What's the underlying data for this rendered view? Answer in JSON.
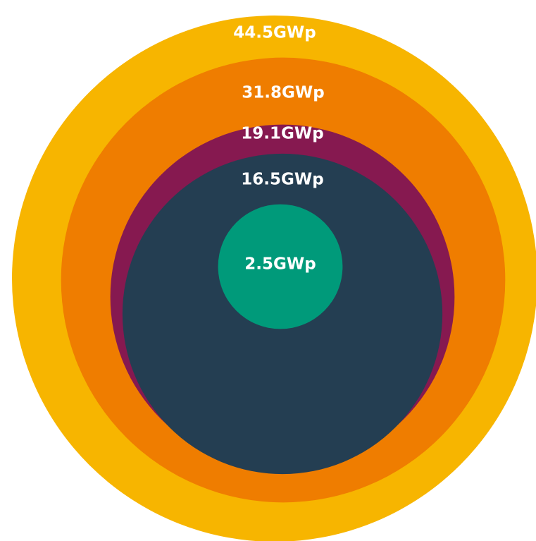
{
  "chart_data": {
    "type": "bubble",
    "values": [
      44.5,
      31.8,
      19.1,
      16.5,
      2.5
    ],
    "value_labels": [
      "44.5GWp",
      "31.8GWp",
      "19.1GWp",
      "16.5GWp",
      "2.5GWp"
    ],
    "colors": [
      "#f7b500",
      "#ef7d00",
      "#861950",
      "#243e52",
      "#009a7a"
    ]
  }
}
